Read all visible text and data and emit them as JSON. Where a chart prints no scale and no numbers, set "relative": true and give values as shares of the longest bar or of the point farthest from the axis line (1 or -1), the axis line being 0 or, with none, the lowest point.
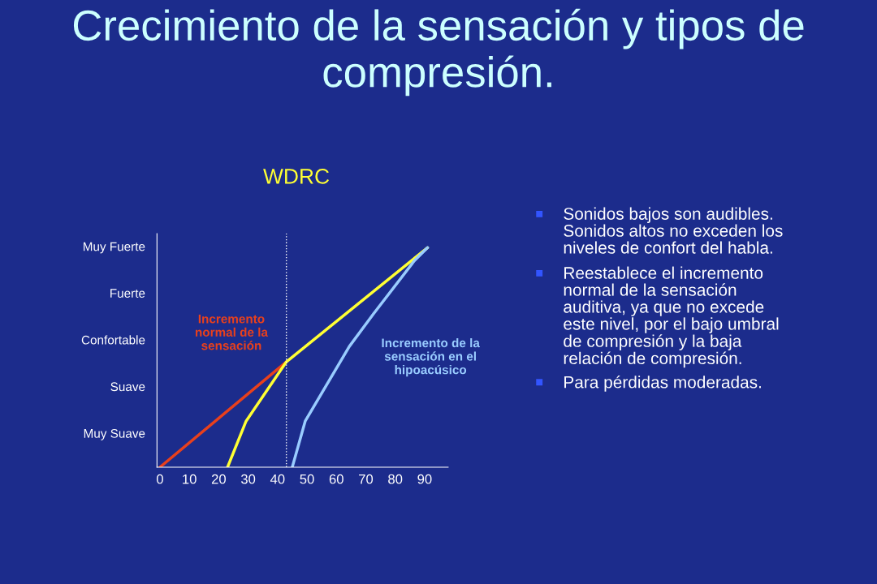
{
  "chart_data": {
    "type": "line",
    "title": "Crecimiento de la sensación y tipos de compresión.",
    "subtitle": "WDRC",
    "relative": true,
    "xlim": [
      -1,
      98
    ],
    "xticks": [
      0,
      10,
      20,
      30,
      40,
      50,
      60,
      70,
      80,
      90
    ],
    "series": [
      {
        "name": "Incremento normal de la sensación",
        "color": "#e8401c",
        "x": [
          0,
          43
        ],
        "values": [
          0,
          0.48
        ]
      },
      {
        "color": "#ffff33",
        "x": [
          23,
          29.3,
          43,
          91
        ],
        "values": [
          0,
          0.21,
          0.48,
          1
        ]
      },
      {
        "name": "Incremento de la sensación en el hipoacúsico",
        "color": "#99ccff",
        "x": [
          45,
          49.4,
          64.4,
          72.7,
          86.5,
          91
        ],
        "values": [
          0,
          0.21,
          0.55,
          0.7,
          0.94,
          1
        ]
      }
    ],
    "ref_lines": [
      {
        "axis": "x",
        "value": 43,
        "color": "#ffffff",
        "line_style": "dotted"
      }
    ],
    "grid": false,
    "legend": false,
    "marker": "none",
    "line_style": "solid",
    "annotations": [
      "Muy Suave",
      "Suave",
      "Confortable",
      "Fuerte",
      "Muy Fuerte",
      "Sonidos bajos son audibles.  Sonidos altos no exceden los niveles de confort del habla.",
      "Reestablece el incremento normal de la sensación auditiva, ya que no excede este nivel, por el bajo umbral de compresión y la baja relación de compresión.",
      "Para pérdidas moderadas."
    ]
  }
}
